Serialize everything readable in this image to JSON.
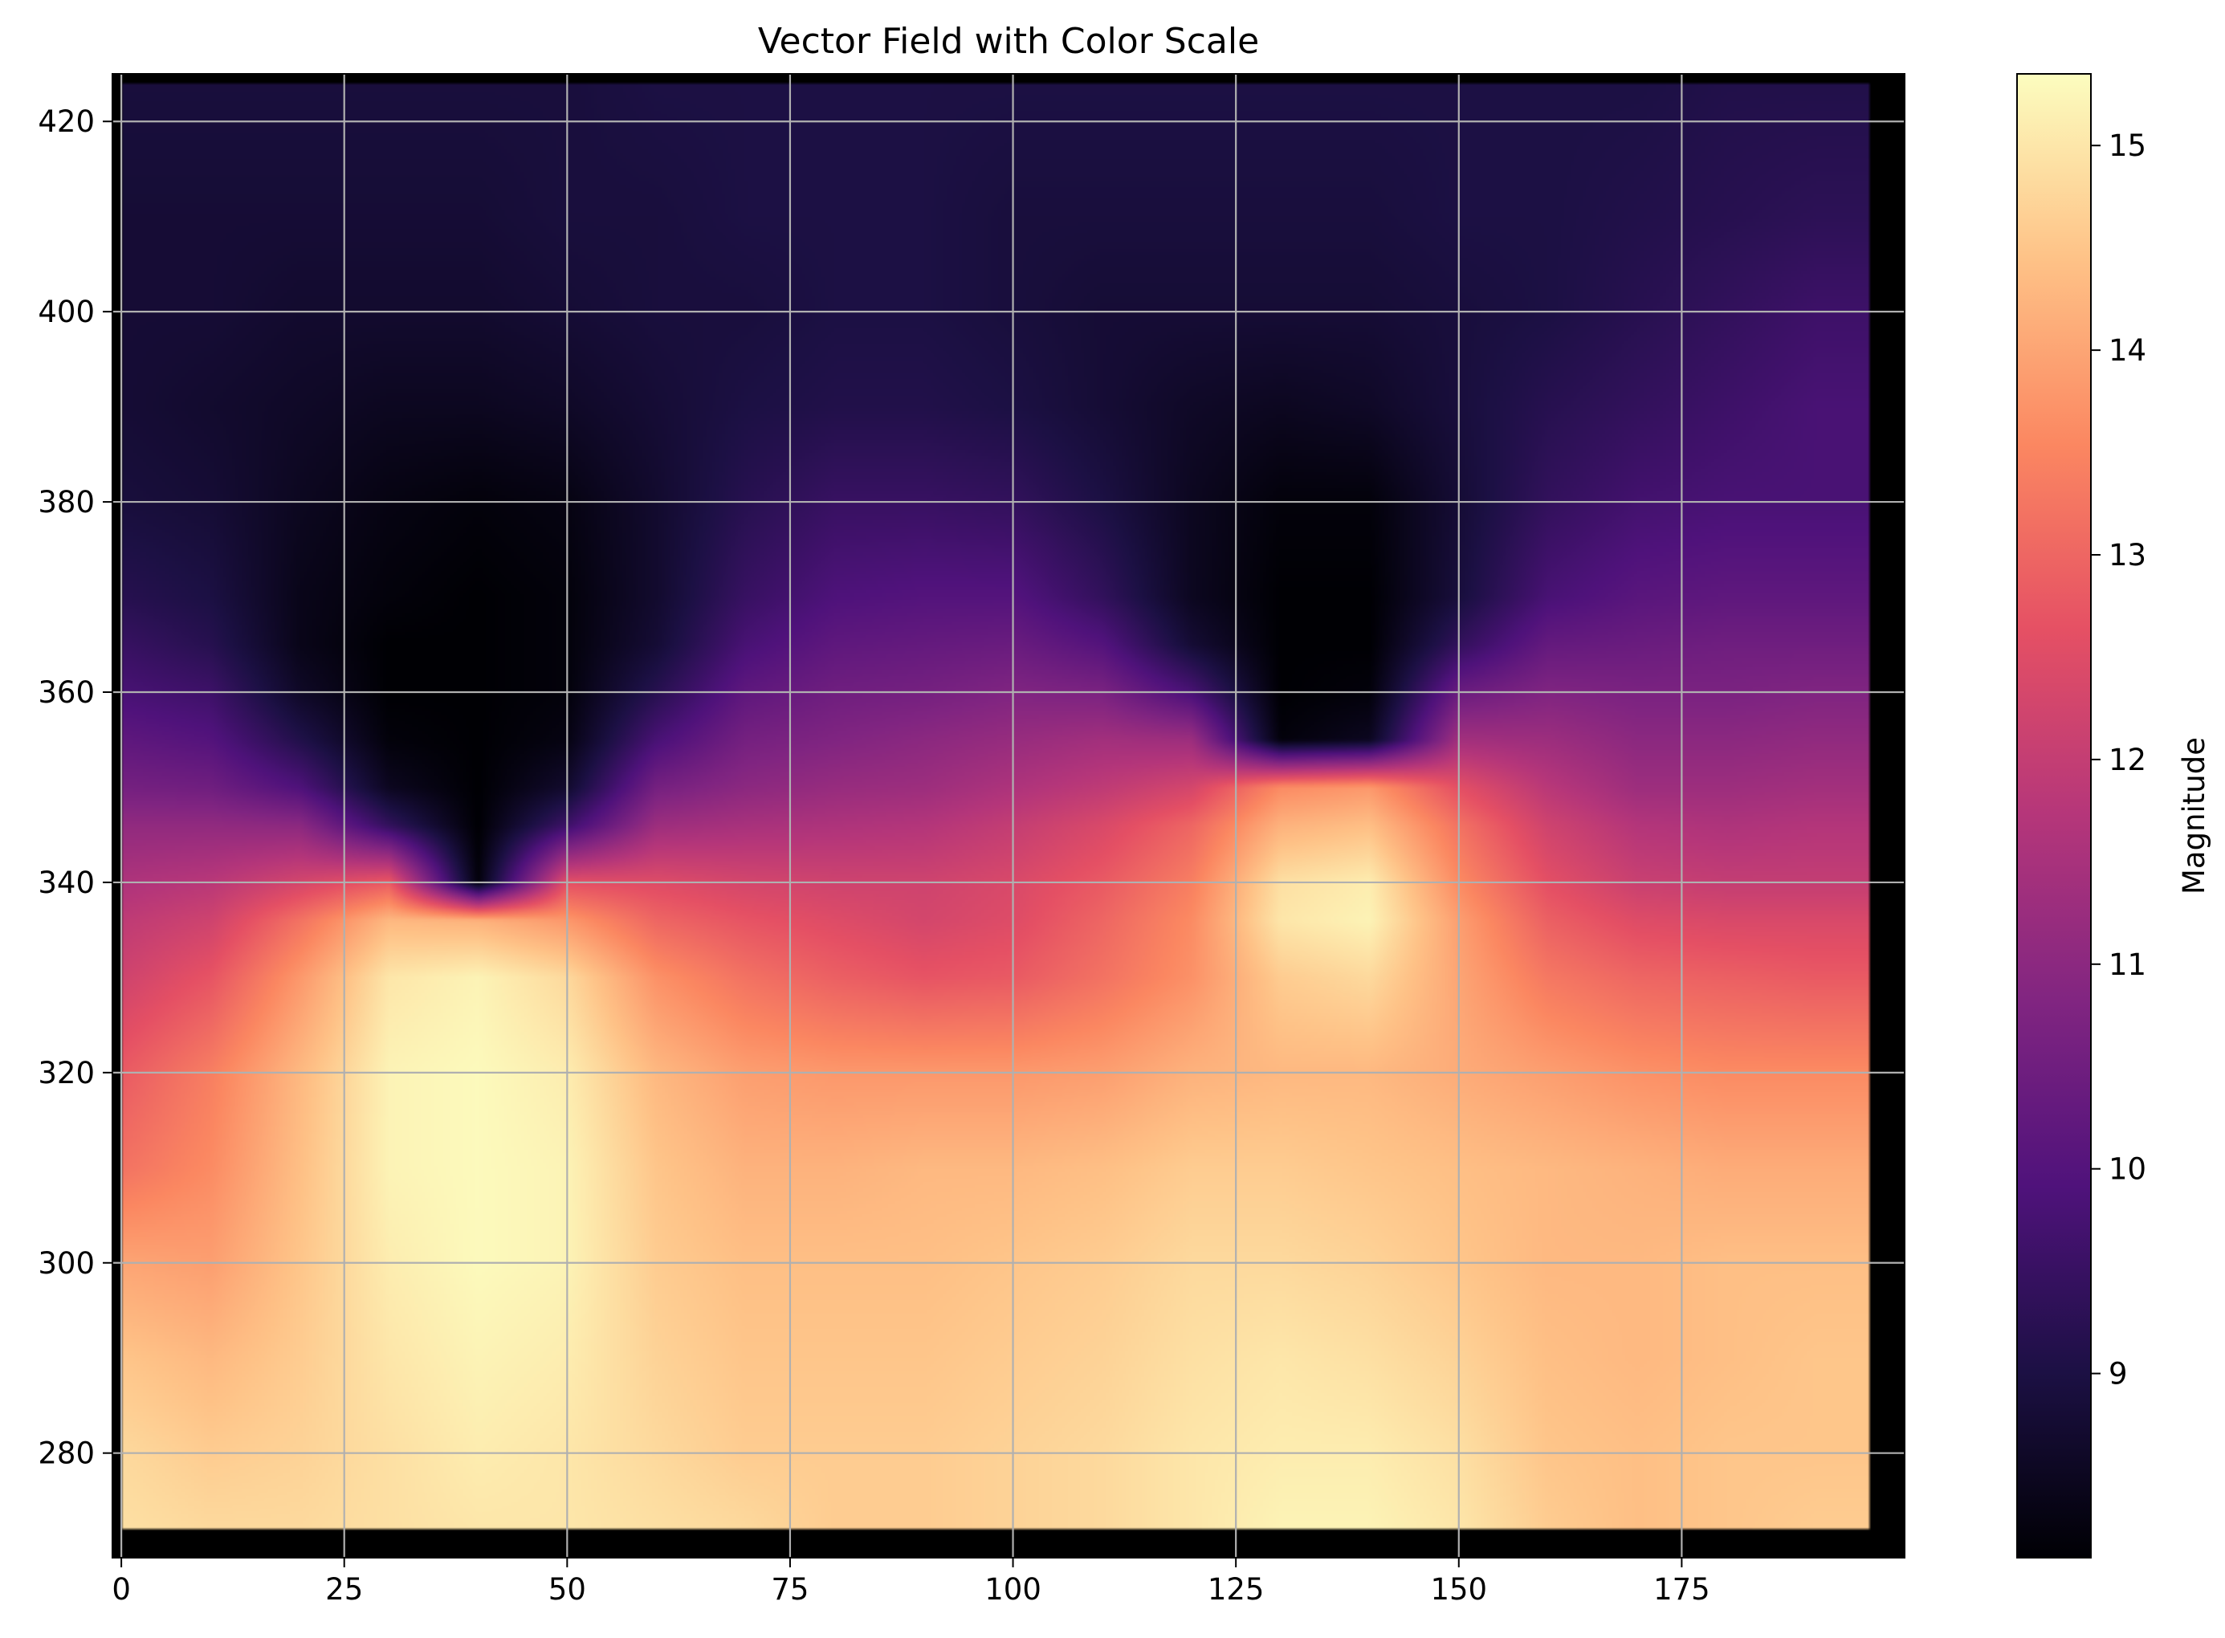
{
  "chart_data": {
    "type": "heatmap",
    "title": "Vector Field with Color Scale",
    "xlabel": "",
    "ylabel": "",
    "colormap": "magma",
    "grid": true,
    "xlim": [
      -1,
      200
    ],
    "ylim": [
      269,
      425
    ],
    "data_extent": {
      "x": [
        0,
        196
      ],
      "y": [
        272,
        424
      ]
    },
    "x_ticks": [
      0,
      25,
      50,
      75,
      100,
      125,
      150,
      175
    ],
    "y_ticks": [
      280,
      300,
      320,
      340,
      360,
      380,
      400,
      420
    ],
    "colorbar": {
      "label": "Magnitude",
      "range": [
        8.1,
        15.35
      ],
      "ticks": [
        9,
        10,
        11,
        12,
        13,
        14,
        15
      ]
    },
    "magnitude_grid": {
      "x": [
        0,
        10,
        20,
        30,
        40,
        50,
        60,
        70,
        80,
        90,
        100,
        110,
        120,
        130,
        140,
        150,
        160,
        170,
        180,
        190,
        196
      ],
      "y": [
        272,
        280,
        290,
        300,
        310,
        320,
        330,
        336,
        340,
        346,
        350,
        355,
        360,
        365,
        370,
        380,
        390,
        400,
        410,
        424
      ],
      "values": [
        [
          14.9,
          14.8,
          14.8,
          14.9,
          15.0,
          15.0,
          14.9,
          14.8,
          14.6,
          14.6,
          14.7,
          14.8,
          15.0,
          15.2,
          15.2,
          15.0,
          14.6,
          14.4,
          14.5,
          14.6,
          14.6
        ],
        [
          14.8,
          14.6,
          14.7,
          14.9,
          15.1,
          15.0,
          14.8,
          14.6,
          14.6,
          14.6,
          14.7,
          14.8,
          15.0,
          15.1,
          15.1,
          14.9,
          14.5,
          14.4,
          14.5,
          14.5,
          14.5
        ],
        [
          14.5,
          14.3,
          14.6,
          15.0,
          15.2,
          15.1,
          14.7,
          14.5,
          14.5,
          14.5,
          14.6,
          14.7,
          14.9,
          15.0,
          14.9,
          14.7,
          14.4,
          14.3,
          14.4,
          14.5,
          14.5
        ],
        [
          14.0,
          13.9,
          14.5,
          15.1,
          15.3,
          15.2,
          14.6,
          14.4,
          14.4,
          14.4,
          14.5,
          14.6,
          14.8,
          14.8,
          14.7,
          14.5,
          14.3,
          14.3,
          14.4,
          14.4,
          14.4
        ],
        [
          13.2,
          13.6,
          14.4,
          15.2,
          15.3,
          15.2,
          14.5,
          14.2,
          14.2,
          14.3,
          14.3,
          14.4,
          14.6,
          14.6,
          14.5,
          14.4,
          14.3,
          14.2,
          14.1,
          14.1,
          14.1
        ],
        [
          12.8,
          13.4,
          14.3,
          15.2,
          15.3,
          15.1,
          14.3,
          13.9,
          13.8,
          13.8,
          13.8,
          13.9,
          14.2,
          14.3,
          14.3,
          14.1,
          13.9,
          13.7,
          13.6,
          13.6,
          13.6
        ],
        [
          12.2,
          12.7,
          13.8,
          15.0,
          15.2,
          14.8,
          13.7,
          13.2,
          12.9,
          12.7,
          12.8,
          13.2,
          13.7,
          14.6,
          14.8,
          14.0,
          13.3,
          13.0,
          12.9,
          12.8,
          12.8
        ],
        [
          11.9,
          12.2,
          13.2,
          14.3,
          14.2,
          13.8,
          13.0,
          12.7,
          12.5,
          12.3,
          12.5,
          13.0,
          13.6,
          15.0,
          15.2,
          13.9,
          12.9,
          12.5,
          12.4,
          12.4,
          12.4
        ],
        [
          11.6,
          11.8,
          12.3,
          12.8,
          8.2,
          12.6,
          12.5,
          12.3,
          12.2,
          12.2,
          12.4,
          12.8,
          13.4,
          14.9,
          15.1,
          13.6,
          12.6,
          12.1,
          12.0,
          12.0,
          12.0
        ],
        [
          11.1,
          11.1,
          11.0,
          9.4,
          8.1,
          9.6,
          11.3,
          11.5,
          11.6,
          11.7,
          12.0,
          12.4,
          13.0,
          14.2,
          14.4,
          13.2,
          12.2,
          11.7,
          11.6,
          11.7,
          11.7
        ],
        [
          10.6,
          10.5,
          9.9,
          8.5,
          8.1,
          8.7,
          10.6,
          11.0,
          11.2,
          11.3,
          11.6,
          11.9,
          12.3,
          13.6,
          13.8,
          12.6,
          11.8,
          11.3,
          11.3,
          11.4,
          11.4
        ],
        [
          10.2,
          10.0,
          9.1,
          8.2,
          8.1,
          8.3,
          9.8,
          10.6,
          10.8,
          11.0,
          11.2,
          11.4,
          11.3,
          8.2,
          8.5,
          11.4,
          11.3,
          11.0,
          11.0,
          11.1,
          11.1
        ],
        [
          9.8,
          9.6,
          8.6,
          8.1,
          8.1,
          8.2,
          9.2,
          10.2,
          10.5,
          10.6,
          10.8,
          10.7,
          9.8,
          8.1,
          8.2,
          10.4,
          10.8,
          10.7,
          10.7,
          10.8,
          10.8
        ],
        [
          9.5,
          9.2,
          8.4,
          8.1,
          8.1,
          8.2,
          8.8,
          9.8,
          10.2,
          10.3,
          10.4,
          10.0,
          8.8,
          8.1,
          8.1,
          9.4,
          10.3,
          10.4,
          10.5,
          10.5,
          10.5
        ],
        [
          9.2,
          9.0,
          8.4,
          8.2,
          8.1,
          8.2,
          8.7,
          9.5,
          9.9,
          10.0,
          10.0,
          9.4,
          8.5,
          8.1,
          8.1,
          8.9,
          9.8,
          10.1,
          10.2,
          10.2,
          10.2
        ],
        [
          8.9,
          8.8,
          8.5,
          8.3,
          8.2,
          8.3,
          8.7,
          9.2,
          9.5,
          9.5,
          9.4,
          9.0,
          8.5,
          8.2,
          8.2,
          8.8,
          9.4,
          9.7,
          9.8,
          9.8,
          9.8
        ],
        [
          8.8,
          8.7,
          8.6,
          8.5,
          8.5,
          8.6,
          8.8,
          9.0,
          9.1,
          9.1,
          9.0,
          8.8,
          8.6,
          8.5,
          8.6,
          8.9,
          9.2,
          9.4,
          9.6,
          9.8,
          9.8
        ],
        [
          8.8,
          8.8,
          8.7,
          8.7,
          8.7,
          8.8,
          8.9,
          8.9,
          9.0,
          9.0,
          8.9,
          8.8,
          8.8,
          8.8,
          8.8,
          8.9,
          9.0,
          9.2,
          9.4,
          9.6,
          9.6
        ],
        [
          8.8,
          8.8,
          8.8,
          8.8,
          8.8,
          8.9,
          8.9,
          9.0,
          9.0,
          9.0,
          8.9,
          8.9,
          8.9,
          8.9,
          8.9,
          9.0,
          9.0,
          9.1,
          9.2,
          9.3,
          9.3
        ],
        [
          8.9,
          8.9,
          8.9,
          8.9,
          8.9,
          8.9,
          9.0,
          9.0,
          9.0,
          9.0,
          9.0,
          9.0,
          9.0,
          9.0,
          9.0,
          9.0,
          9.0,
          9.0,
          9.1,
          9.1,
          9.1
        ]
      ]
    }
  }
}
